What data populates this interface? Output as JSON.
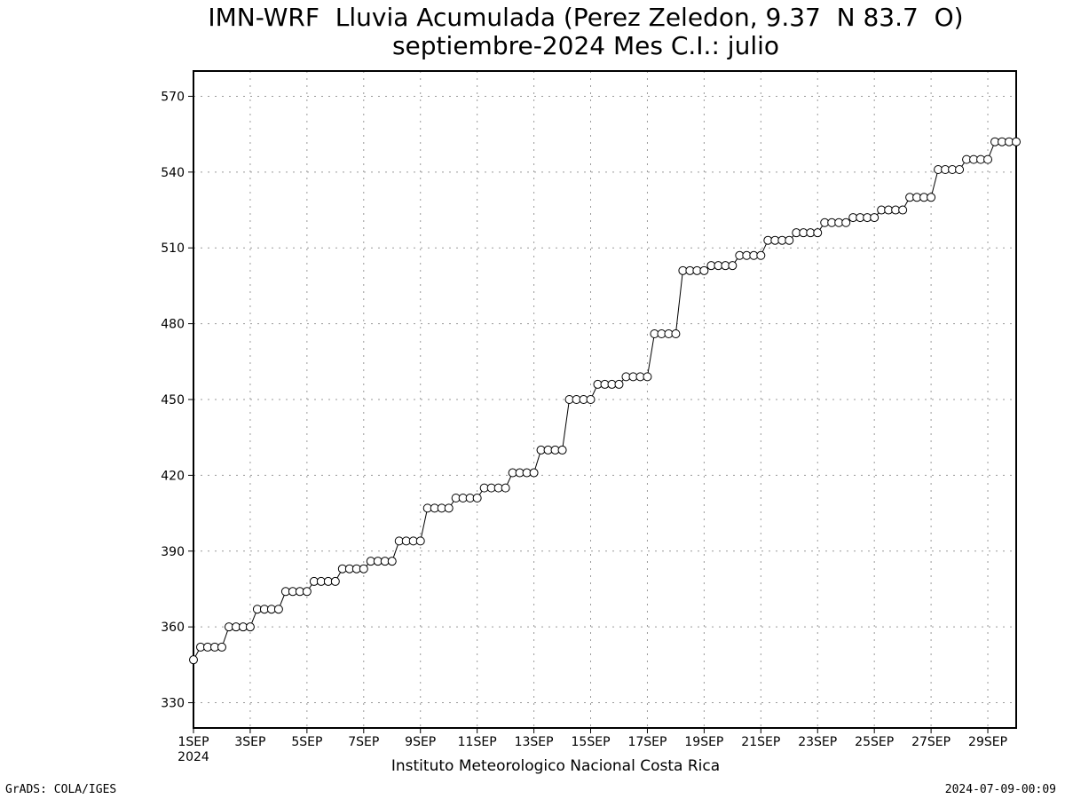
{
  "title_line1": "IMN-WRF  Lluvia Acumulada (Perez Zeledon, 9.37  N 83.7  O)",
  "title_line2": "septiembre-2024 Mes C.I.: julio",
  "institution": "Instituto Meteorologico Nacional Costa Rica",
  "footer_left": "GrADS: COLA/IGES",
  "footer_right": "2024-07-09-00:09",
  "chart_data": {
    "type": "line",
    "title": "IMN-WRF  Lluvia Acumulada (Perez Zeledon, 9.37  N 83.7  O)",
    "subtitle": "septiembre-2024 Mes C.I.: julio",
    "xlabel": "",
    "ylabel": "",
    "x_unit": "day of September 2024 (4 steps per day, 6-hourly)",
    "xlim": [
      "1SEP",
      "30SEP"
    ],
    "ylim": [
      320,
      580
    ],
    "grid": true,
    "marker": "open-circle",
    "x_ticks": [
      "1SEP",
      "3SEP",
      "5SEP",
      "7SEP",
      "9SEP",
      "11SEP",
      "13SEP",
      "15SEP",
      "17SEP",
      "19SEP",
      "21SEP",
      "23SEP",
      "25SEP",
      "27SEP",
      "29SEP"
    ],
    "x_year_label": "2024",
    "y_ticks": [
      330,
      360,
      390,
      420,
      450,
      480,
      510,
      540,
      570
    ],
    "values": [
      347,
      352,
      352,
      352,
      352,
      360,
      360,
      360,
      360,
      367,
      367,
      367,
      367,
      374,
      374,
      374,
      374,
      378,
      378,
      378,
      378,
      383,
      383,
      383,
      383,
      386,
      386,
      386,
      386,
      394,
      394,
      394,
      394,
      407,
      407,
      407,
      407,
      411,
      411,
      411,
      411,
      415,
      415,
      415,
      415,
      421,
      421,
      421,
      421,
      430,
      430,
      430,
      430,
      450,
      450,
      450,
      450,
      456,
      456,
      456,
      456,
      459,
      459,
      459,
      459,
      476,
      476,
      476,
      476,
      501,
      501,
      501,
      501,
      503,
      503,
      503,
      503,
      507,
      507,
      507,
      507,
      513,
      513,
      513,
      513,
      516,
      516,
      516,
      516,
      520,
      520,
      520,
      520,
      522,
      522,
      522,
      522,
      525,
      525,
      525,
      525,
      530,
      530,
      530,
      530,
      541,
      541,
      541,
      541,
      545,
      545,
      545,
      545,
      552,
      552,
      552,
      552
    ]
  }
}
